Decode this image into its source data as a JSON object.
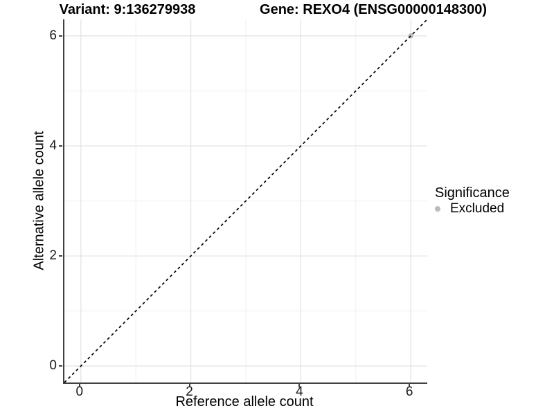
{
  "chart_data": {
    "type": "scatter",
    "title_left": "Variant: 9:136279938",
    "title_right": "Gene: REXO4 (ENSG00000148300)",
    "xlabel": "Reference allele count",
    "ylabel": "Alternative allele count",
    "xlim": [
      -0.3,
      6.3
    ],
    "ylim": [
      -0.3,
      6.3
    ],
    "x_ticks": [
      "0",
      "2",
      "4",
      "6"
    ],
    "y_ticks": [
      "0",
      "2",
      "4",
      "6"
    ],
    "x_tick_values": [
      0,
      2,
      4,
      6
    ],
    "y_tick_values": [
      0,
      2,
      4,
      6
    ],
    "x_minor_values": [
      1,
      3,
      5
    ],
    "y_minor_values": [
      1,
      3,
      5
    ],
    "grid": true,
    "reference_line": {
      "style": "dashed",
      "color": "#000000",
      "points": [
        [
          -0.3,
          -0.3
        ],
        [
          6.3,
          6.3
        ]
      ]
    },
    "series": [
      {
        "name": "Excluded",
        "color": "#bcbcbc",
        "points": [
          [
            6,
            6
          ]
        ]
      }
    ],
    "legend": {
      "title": "Significance",
      "position": "right",
      "entries": [
        {
          "label": "Excluded",
          "color": "#bcbcbc",
          "marker": "circle"
        }
      ]
    },
    "colors": {
      "grid_major": "#e2e2e2",
      "grid_minor": "#efefef",
      "axis_line": "#404040",
      "tick_label": "#1a1a1a"
    }
  }
}
